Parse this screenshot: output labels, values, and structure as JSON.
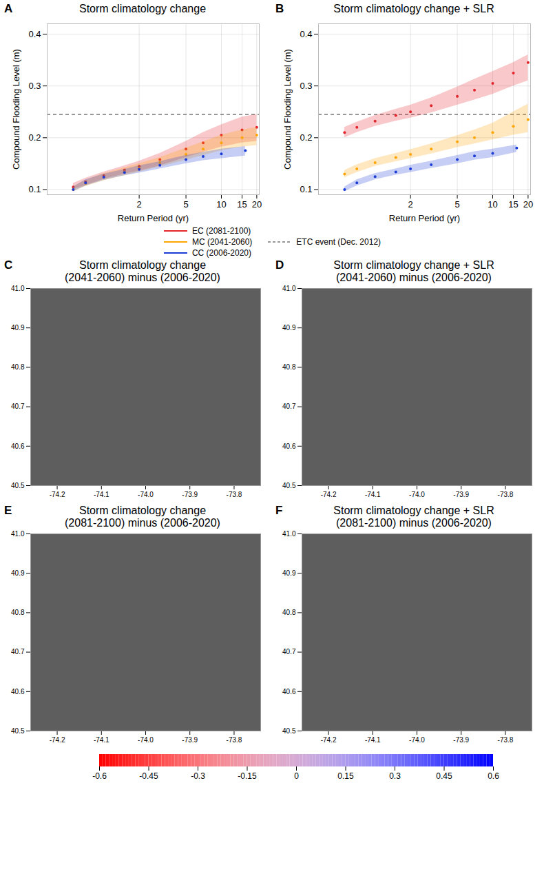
{
  "chart_data": [
    {
      "type": "scatter",
      "label": "A",
      "title": "Storm climatology change",
      "x_label": "Return Period (yr)",
      "y_label": "Compound Flooding Level (m)",
      "log": "x",
      "grid": true,
      "marker": "circle",
      "legend": "bottom",
      "xlim": [
        0.33,
        21
      ],
      "xticks": [
        2,
        5,
        10,
        15,
        20
      ],
      "ylim": [
        0.09,
        0.42
      ],
      "yticks": [
        0.1,
        0.2,
        0.3,
        0.4
      ],
      "reference_line": {
        "name": "ETC event (Dec. 2012)",
        "value": 0.245,
        "color": "#333333",
        "line_style": "dashed"
      },
      "series": [
        {
          "name": "EC (2081-2100)",
          "color": "#e3242b",
          "x": [
            0.55,
            0.7,
            1,
            1.5,
            2,
            3,
            5,
            7,
            10,
            15,
            20
          ],
          "values": [
            0.105,
            0.115,
            0.127,
            0.138,
            0.145,
            0.158,
            0.178,
            0.19,
            0.205,
            0.215,
            0.22
          ],
          "lower": [
            0.1,
            0.108,
            0.12,
            0.13,
            0.136,
            0.146,
            0.162,
            0.172,
            0.182,
            0.19,
            0.193
          ],
          "upper": [
            0.112,
            0.122,
            0.134,
            0.146,
            0.155,
            0.17,
            0.193,
            0.21,
            0.225,
            0.24,
            0.245
          ]
        },
        {
          "name": "MC (2041-2060)",
          "color": "#ffa500",
          "x": [
            0.55,
            0.7,
            1,
            1.5,
            2,
            3,
            5,
            7,
            10,
            15,
            20
          ],
          "values": [
            0.1,
            0.112,
            0.124,
            0.134,
            0.141,
            0.152,
            0.168,
            0.178,
            0.19,
            0.2,
            0.205
          ],
          "lower": [
            0.096,
            0.106,
            0.117,
            0.127,
            0.134,
            0.144,
            0.157,
            0.166,
            0.175,
            0.182,
            0.185
          ],
          "upper": [
            0.105,
            0.118,
            0.131,
            0.142,
            0.15,
            0.162,
            0.18,
            0.192,
            0.205,
            0.215,
            0.22
          ]
        },
        {
          "name": "CC (2006-2020)",
          "color": "#1a3bd6",
          "x": [
            0.55,
            0.7,
            1,
            1.5,
            2,
            3,
            5,
            7,
            10,
            16
          ],
          "values": [
            0.1,
            0.113,
            0.124,
            0.133,
            0.139,
            0.147,
            0.158,
            0.164,
            0.169,
            0.175
          ],
          "lower": [
            0.096,
            0.107,
            0.118,
            0.127,
            0.132,
            0.14,
            0.15,
            0.156,
            0.16,
            0.165
          ],
          "upper": [
            0.105,
            0.119,
            0.13,
            0.139,
            0.146,
            0.154,
            0.166,
            0.172,
            0.178,
            0.183
          ]
        }
      ]
    },
    {
      "type": "scatter",
      "label": "B",
      "title": "Storm climatology change + SLR",
      "x_label": "Return Period (yr)",
      "y_label": "Compound Flooding Level (m)",
      "log": "x",
      "grid": true,
      "marker": "circle",
      "legend": "bottom",
      "xlim": [
        0.33,
        21
      ],
      "xticks": [
        2,
        5,
        10,
        15,
        20
      ],
      "ylim": [
        0.09,
        0.42
      ],
      "yticks": [
        0.1,
        0.2,
        0.3,
        0.4
      ],
      "reference_line": {
        "name": "ETC event (Dec. 2012)",
        "value": 0.245,
        "color": "#333333",
        "line_style": "dashed"
      },
      "series": [
        {
          "name": "EC (2081-2100)",
          "color": "#e3242b",
          "x": [
            0.55,
            0.7,
            1,
            1.5,
            2,
            3,
            5,
            7,
            10,
            15,
            20
          ],
          "values": [
            0.21,
            0.22,
            0.232,
            0.243,
            0.25,
            0.262,
            0.28,
            0.292,
            0.305,
            0.325,
            0.345
          ],
          "lower": [
            0.2,
            0.21,
            0.222,
            0.232,
            0.238,
            0.248,
            0.263,
            0.273,
            0.284,
            0.3,
            0.31
          ],
          "upper": [
            0.22,
            0.23,
            0.243,
            0.255,
            0.263,
            0.277,
            0.298,
            0.313,
            0.328,
            0.345,
            0.36
          ]
        },
        {
          "name": "MC (2041-2060)",
          "color": "#ffa500",
          "x": [
            0.55,
            0.7,
            1,
            1.5,
            2,
            3,
            5,
            7,
            10,
            15,
            20
          ],
          "values": [
            0.13,
            0.14,
            0.152,
            0.162,
            0.168,
            0.178,
            0.192,
            0.2,
            0.21,
            0.222,
            0.235
          ],
          "lower": [
            0.123,
            0.133,
            0.145,
            0.154,
            0.16,
            0.169,
            0.181,
            0.188,
            0.196,
            0.205,
            0.21
          ],
          "upper": [
            0.137,
            0.148,
            0.16,
            0.17,
            0.177,
            0.188,
            0.204,
            0.215,
            0.228,
            0.25,
            0.265
          ]
        },
        {
          "name": "CC (2006-2020)",
          "color": "#1a3bd6",
          "x": [
            0.55,
            0.7,
            1,
            1.5,
            2,
            3,
            5,
            7,
            10,
            16
          ],
          "values": [
            0.1,
            0.113,
            0.125,
            0.134,
            0.14,
            0.148,
            0.158,
            0.165,
            0.17,
            0.18
          ],
          "lower": [
            0.096,
            0.107,
            0.119,
            0.128,
            0.133,
            0.141,
            0.15,
            0.157,
            0.162,
            0.172
          ],
          "upper": [
            0.105,
            0.119,
            0.131,
            0.14,
            0.147,
            0.155,
            0.166,
            0.173,
            0.178,
            0.186
          ]
        }
      ]
    },
    {
      "type": "map",
      "label": "C",
      "title": "Storm climatology change (2041-2060) minus (2006-2020)",
      "xlim": [
        -74.26,
        -73.74
      ],
      "ylim": [
        40.5,
        41.0
      ],
      "xticks": [
        -74.2,
        -74.1,
        {
          "value": -74.0,
          "label": "-74.0"
        },
        -73.9,
        -73.8
      ],
      "yticks": [
        40.5,
        40.6,
        40.7,
        40.8,
        40.9,
        {
          "value": 41.0,
          "label": "41.0"
        }
      ],
      "grid": false
    },
    {
      "type": "map",
      "label": "D",
      "title": "Storm climatology change + SLR (2041-2060) minus (2006-2020)",
      "xlim": [
        -74.26,
        -73.74
      ],
      "ylim": [
        40.5,
        41.0
      ],
      "xticks": [
        -74.2,
        -74.1,
        {
          "value": -74.0,
          "label": "-74.0"
        },
        -73.9,
        -73.8
      ],
      "yticks": [
        40.5,
        40.6,
        40.7,
        40.8,
        40.9,
        {
          "value": 41.0,
          "label": "41.0"
        }
      ],
      "grid": false
    },
    {
      "type": "map",
      "label": "E",
      "title": "Storm climatology change (2081-2100) minus (2006-2020)",
      "xlim": [
        -74.26,
        -73.74
      ],
      "ylim": [
        40.5,
        41.0
      ],
      "xticks": [
        -74.2,
        -74.1,
        {
          "value": -74.0,
          "label": "-74.0"
        },
        -73.9,
        -73.8
      ],
      "yticks": [
        40.5,
        40.6,
        40.7,
        40.8,
        40.9,
        {
          "value": 41.0,
          "label": "41.0"
        }
      ],
      "grid": false
    },
    {
      "type": "map",
      "label": "F",
      "title": "Storm climatology change + SLR (2081-2100) minus (2006-2020)",
      "xlim": [
        -74.26,
        -73.74
      ],
      "ylim": [
        40.5,
        41.0
      ],
      "xticks": [
        -74.2,
        -74.1,
        {
          "value": -74.0,
          "label": "-74.0"
        },
        -73.9,
        -73.8
      ],
      "yticks": [
        40.5,
        40.6,
        40.7,
        40.8,
        40.9,
        {
          "value": 41.0,
          "label": "41.0"
        }
      ],
      "grid": false
    },
    {
      "type": "colorbar",
      "range": [
        -0.6,
        0.6
      ],
      "ticks": [
        -0.6,
        -0.45,
        -0.3,
        -0.15,
        0,
        0.15,
        0.3,
        0.45,
        0.6
      ],
      "colors": [
        "#ff0000",
        "#ffffff",
        "#0000ff"
      ]
    }
  ]
}
